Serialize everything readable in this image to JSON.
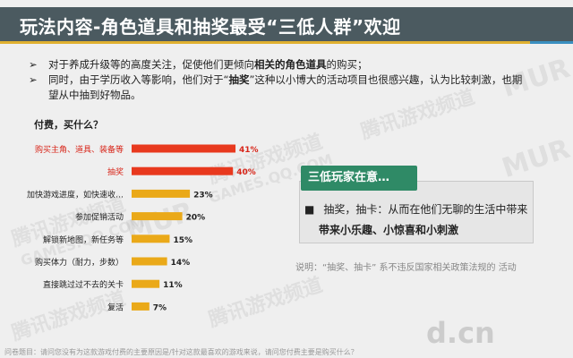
{
  "title": "玩法内容-角色道具和抽奖最受“三低人群”欢迎",
  "bullets": [
    {
      "marker": "➢",
      "pre": "对于养成升级等的高度关注，促使他们更倾向",
      "bold": "相关的角色道具",
      "post": "的购买；"
    },
    {
      "marker": "➢",
      "pre": "同时，由于学历收入等影响，他们对于“",
      "bold": "抽奖",
      "post": "”这种以小博大的活动项目也很感兴趣，认为比较刺激，也期望从中抽到好物品。"
    }
  ],
  "chart_data": {
    "type": "bar",
    "orientation": "horizontal",
    "title": "付费，买什么？",
    "categories": [
      "购买主角、道具、装备等",
      "抽奖",
      "加快游戏进度，如快速收…",
      "参加促销活动",
      "解锁新地图，新任务等",
      "购买体力（耐力，步数）",
      "直接跳过过不去的关卡",
      "复活"
    ],
    "values": [
      41,
      40,
      23,
      20,
      15,
      14,
      11,
      7
    ],
    "data_labels": [
      "41%",
      "40%",
      "23%",
      "20%",
      "15%",
      "14%",
      "11%",
      "7%"
    ],
    "unit": "%",
    "highlight_color": "#e8391e",
    "base_color": "#eaa919",
    "highlighted": [
      true,
      true,
      false,
      false,
      false,
      false,
      false,
      false
    ],
    "grid": false
  },
  "callout": {
    "tag": "三低玩家在意…",
    "marker": "■",
    "line1": "抽奖，抽卡：从而在他们无聊的生活中带来",
    "line2": "带来小乐趣、小惊喜和小刺激"
  },
  "note": "说明：“抽奖、抽卡” 系不违反国家相关政策法规的 活动",
  "footer": "问卷题目：请问您没有为这款游戏付费的主要原因是/针对这款最喜欢的游戏来说，请问您付费主要是购买什么？",
  "watermarks": [
    "腾讯游戏频道",
    "GAMES.QQ.COM",
    "MUR",
    "d.cn当乐网"
  ],
  "colors": {
    "title_bar": "#4b5a60",
    "callout_tag": "#2f8a66",
    "underline": "#e0b030"
  }
}
